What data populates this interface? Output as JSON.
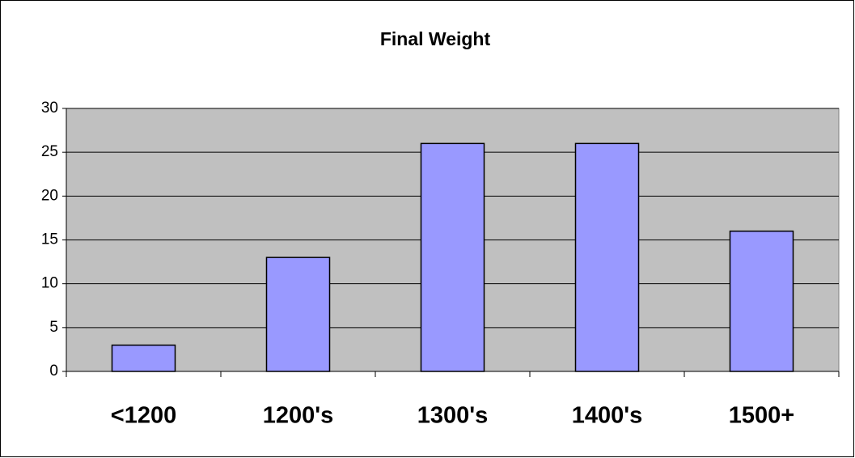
{
  "chart_data": {
    "type": "bar",
    "title": "Final Weight",
    "categories": [
      "<1200",
      "1200's",
      "1300's",
      "1400's",
      "1500+"
    ],
    "values": [
      3,
      13,
      26,
      26,
      16
    ],
    "color": "#9999ff",
    "ylim": [
      0,
      30
    ],
    "yticks": [
      0,
      5,
      10,
      15,
      20,
      25,
      30
    ],
    "grid": true
  }
}
